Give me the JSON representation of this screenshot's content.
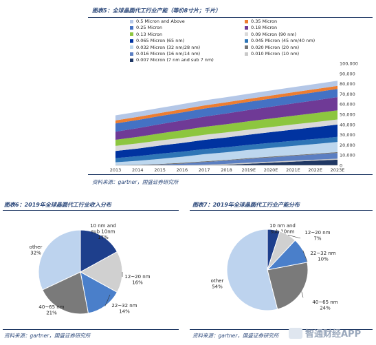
{
  "figure5": {
    "title": "图表5：全球晶圆代工行业产能（等价8寸片；千片）",
    "source": "资料来源：gartner，国盛证券研究所"
  },
  "figure6": {
    "title": "图表6：2019年全球晶圆代工行业收入分布",
    "source": "资料来源：gartner，国盛证券研究所"
  },
  "figure7": {
    "title": "图表7：2019年全球晶圆代工行业产能分布",
    "source": "资料来源：gartner，国盛证券研究所"
  },
  "watermark": {
    "text": "智通财经APP"
  },
  "chart_data": [
    {
      "type": "area",
      "stacked": true,
      "x": [
        "2013",
        "2014",
        "2015",
        "2016",
        "2017",
        "2018",
        "2019E",
        "2020E",
        "2021E",
        "2022E",
        "2023E"
      ],
      "ylim": [
        0,
        100000
      ],
      "yticks": [
        0,
        10000,
        20000,
        30000,
        40000,
        50000,
        60000,
        70000,
        80000,
        90000,
        100000
      ],
      "ytick_labels": [
        "0",
        "10,000",
        "20,000",
        "30,000",
        "40,000",
        "50,000",
        "60,000",
        "70,000",
        "80,000",
        "90,000",
        "100,000"
      ],
      "y_axis_side": "right",
      "legend_position": "top-left",
      "series": [
        {
          "name": "0.007 Micron (7 nm and sub 7 nm)",
          "color": "#203864",
          "values": [
            0,
            0,
            0,
            0,
            0,
            500,
            1500,
            2500,
            3500,
            4500,
            5500
          ]
        },
        {
          "name": "0.010 Micron (10 nm)",
          "color": "#c9c9c9",
          "values": [
            0,
            0,
            0,
            0,
            500,
            900,
            1100,
            1100,
            1100,
            1000,
            1000
          ]
        },
        {
          "name": "0.016 Micron (16 nm/14 nm)",
          "color": "#5b7fc2",
          "values": [
            0,
            0,
            600,
            1600,
            2600,
            3100,
            3600,
            4100,
            4600,
            5100,
            5600
          ]
        },
        {
          "name": "0.020 Micron (20 nm)",
          "color": "#757575",
          "values": [
            0,
            400,
            700,
            800,
            800,
            800,
            800,
            800,
            800,
            800,
            800
          ]
        },
        {
          "name": "0.032 Micron (32 nm/28 nm)",
          "color": "#bdd7ee",
          "values": [
            3000,
            4000,
            5000,
            6000,
            7000,
            7500,
            8000,
            8500,
            9000,
            9500,
            10000
          ]
        },
        {
          "name": "0.045 Micron (45 nm/40 nm)",
          "color": "#2e75b6",
          "values": [
            4000,
            4500,
            5000,
            5000,
            5000,
            5000,
            5000,
            5000,
            5000,
            5000,
            5000
          ]
        },
        {
          "name": "0.065 Micron (65 nm)",
          "color": "#0033a0",
          "values": [
            7000,
            7500,
            8000,
            8500,
            9000,
            9500,
            10000,
            10500,
            11000,
            11500,
            12000
          ]
        },
        {
          "name": "0.09 Micron (90 nm)",
          "color": "#d9d9d9",
          "values": [
            5000,
            5000,
            5000,
            5000,
            5000,
            5000,
            5000,
            5000,
            5000,
            5000,
            5000
          ]
        },
        {
          "name": "0.13 Micron",
          "color": "#8dc63f",
          "values": [
            6000,
            6500,
            7000,
            7500,
            7800,
            8000,
            8200,
            8400,
            8600,
            8800,
            9000
          ]
        },
        {
          "name": "0.18 Micron",
          "color": "#6f3a96",
          "values": [
            8000,
            8500,
            9000,
            9500,
            10000,
            10500,
            11000,
            11500,
            12000,
            12500,
            13000
          ]
        },
        {
          "name": "0.25 Micron",
          "color": "#4472c4",
          "values": [
            8000,
            8000,
            8000,
            8000,
            8000,
            8000,
            8000,
            8000,
            8000,
            8000,
            8000
          ]
        },
        {
          "name": "0.35 Micron",
          "color": "#ed7d31",
          "values": [
            3000,
            3000,
            3000,
            3000,
            3000,
            3000,
            3000,
            3000,
            3000,
            3000,
            3000
          ]
        },
        {
          "name": "0.5 Micron and Above",
          "color": "#b4c7e7",
          "values": [
            5000,
            5000,
            5000,
            5000,
            5000,
            5000,
            5000,
            5000,
            5000,
            5000,
            5000
          ]
        }
      ],
      "legend_columns": [
        [
          "0.5 Micron and Above",
          "0.25 Micron",
          "0.13 Micron",
          "0.065 Micron (65 nm)",
          "0.032 Micron (32 nm/28 nm)",
          "0.016 Micron (16 nm/14 nm)",
          "0.007 Micron (7 nm and sub 7 nm)"
        ],
        [
          "0.35 Micron",
          "0.18 Micron",
          "0.09 Micron (90 nm)",
          "0.045 Micron (45 nm/40 nm)",
          "0.020 Micron (20 nm)",
          "0.010 Micron (10 nm)"
        ]
      ]
    },
    {
      "type": "pie",
      "slices": [
        {
          "label": "10 nm and sub 10nm",
          "value": 17,
          "display": "17%",
          "color": "#1e3f8c",
          "label_lines": [
            "10 nm and",
            "sub 10nm",
            "17%"
          ]
        },
        {
          "label": "12~20 nm",
          "value": 16,
          "display": "16%",
          "color": "#d0d0d0",
          "label_lines": [
            "12~20 nm",
            "16%"
          ]
        },
        {
          "label": "22~32 nm",
          "value": 14,
          "display": "14%",
          "color": "#4a7fca",
          "label_lines": [
            "22~32 nm",
            "14%"
          ]
        },
        {
          "label": "40~65 nm",
          "value": 21,
          "display": "21%",
          "color": "#7a7a7a",
          "label_lines": [
            "40~65 nm",
            "21%"
          ]
        },
        {
          "label": "other",
          "value": 32,
          "display": "32%",
          "color": "#bdd3ee",
          "label_lines": [
            "other",
            "32%"
          ]
        }
      ]
    },
    {
      "type": "pie",
      "slices": [
        {
          "label": "10 nm and sub 10nm",
          "value": 5,
          "display": "5%",
          "color": "#1e3f8c",
          "label_lines": [
            "10 nm and",
            "sub 10nm",
            "5%"
          ]
        },
        {
          "label": "12~20 nm",
          "value": 7,
          "display": "7%",
          "color": "#d0d0d0",
          "label_lines": [
            "12~20 nm",
            "7%"
          ]
        },
        {
          "label": "22~32 nm",
          "value": 10,
          "display": "10%",
          "color": "#4a7fca",
          "label_lines": [
            "22~32 nm",
            "10%"
          ]
        },
        {
          "label": "40~65 nm",
          "value": 24,
          "display": "24%",
          "color": "#7a7a7a",
          "label_lines": [
            "40~65 nm",
            "24%"
          ]
        },
        {
          "label": "other",
          "value": 54,
          "display": "54%",
          "color": "#bdd3ee",
          "label_lines": [
            "other",
            "54%"
          ]
        }
      ]
    }
  ]
}
